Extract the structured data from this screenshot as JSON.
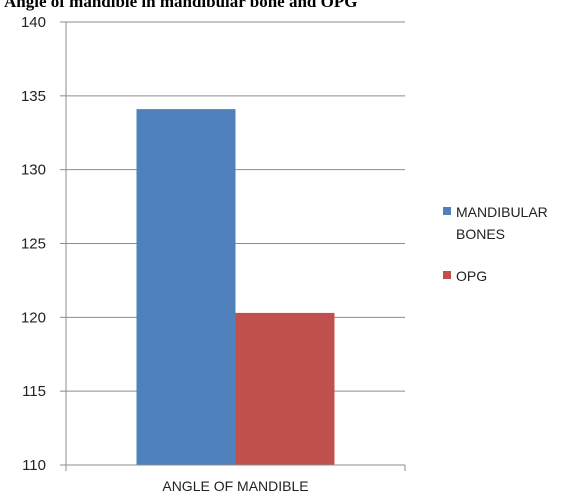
{
  "chart_data": {
    "type": "bar",
    "title": "Angle of mandible in mandibular bone and OPG",
    "categories": [
      "ANGLE OF MANDIBLE"
    ],
    "series": [
      {
        "name": "MANDIBULAR BONES",
        "values": [
          134.1
        ],
        "color": "#4f81bd"
      },
      {
        "name": "OPG",
        "values": [
          120.3
        ],
        "color": "#c0504d"
      }
    ],
    "ylim": [
      110,
      140
    ],
    "yticks": [
      110,
      115,
      120,
      125,
      130,
      135,
      140
    ],
    "xlabel": "",
    "ylabel": "",
    "grid": true,
    "legend_position": "right"
  }
}
